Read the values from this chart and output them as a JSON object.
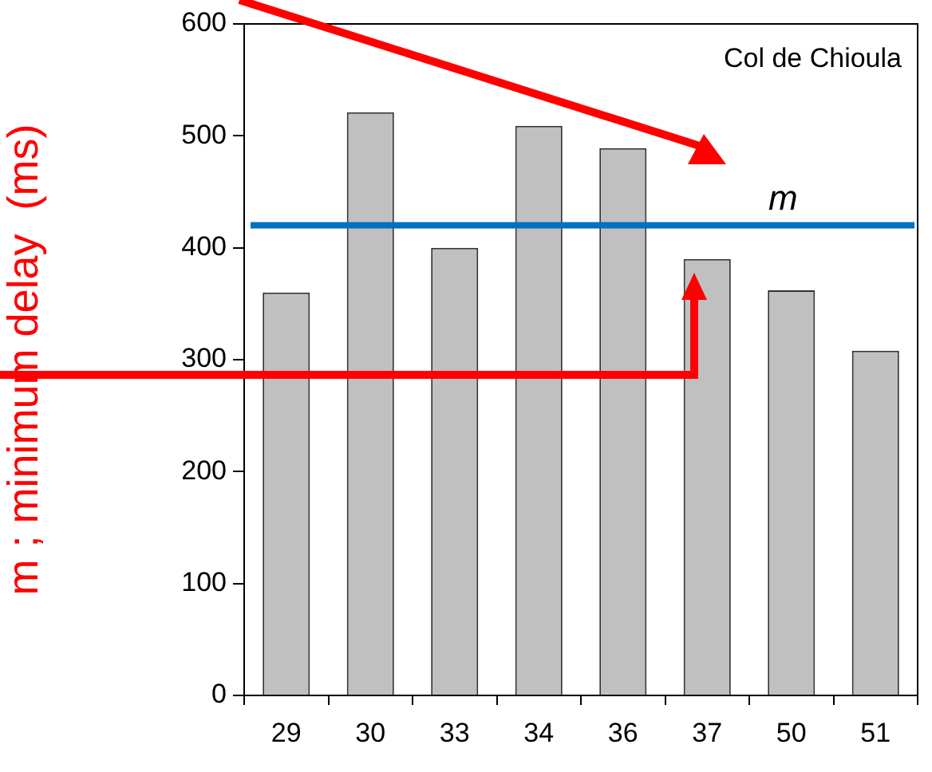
{
  "chart_data": {
    "type": "bar",
    "ylabel": "m ; minimum delay  (ms)",
    "categories": [
      "29",
      "30",
      "33",
      "34",
      "36",
      "37",
      "50",
      "51"
    ],
    "values": [
      360,
      521,
      400,
      509,
      489,
      390,
      362,
      308
    ],
    "color": "#c0c0c0",
    "ylim": [
      0,
      600
    ],
    "yticks": [
      0,
      100,
      200,
      300,
      400,
      500,
      600
    ],
    "ref_lines": [
      {
        "axis": "y",
        "value": 420,
        "label": "m",
        "color": "#0070c0"
      }
    ],
    "annotations": [
      "Col de Chioula"
    ]
  }
}
